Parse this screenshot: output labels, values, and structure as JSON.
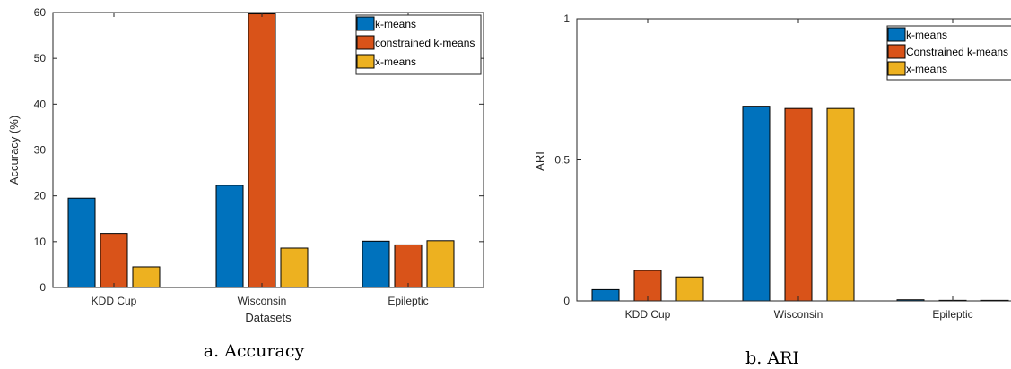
{
  "colors": {
    "k-means": "#0072BD",
    "constrained": "#D95319",
    "x-means": "#EDB120"
  },
  "chart_data": [
    {
      "type": "bar",
      "categories": [
        "KDD Cup",
        "Wisconsin",
        "Epileptic"
      ],
      "series": [
        {
          "name": "k-means",
          "values": [
            19.5,
            22.3,
            10.1
          ]
        },
        {
          "name": "constrained k-means",
          "values": [
            11.8,
            59.7,
            9.3
          ]
        },
        {
          "name": "x-means",
          "values": [
            4.5,
            8.6,
            10.2
          ]
        }
      ],
      "xlabel": "Datasets",
      "ylabel": "Accuracy (%)",
      "ylim": [
        0,
        60
      ],
      "yticks": [
        "0",
        "10",
        "20",
        "30",
        "40",
        "50",
        "60"
      ],
      "legend": "top-right",
      "grid": false,
      "caption": "a. Accuracy"
    },
    {
      "type": "bar",
      "categories": [
        "KDD Cup",
        "Wisconsin",
        "Epileptic"
      ],
      "series": [
        {
          "name": "k-means",
          "values": [
            0.04,
            0.69,
            0.004
          ]
        },
        {
          "name": "Constrained k-means",
          "values": [
            0.108,
            0.682,
            0.002
          ]
        },
        {
          "name": "x-means",
          "values": [
            0.085,
            0.682,
            0.002
          ]
        }
      ],
      "xlabel": "",
      "ylabel": "ARI",
      "ylim": [
        0,
        1
      ],
      "yticks": [
        "0",
        "0.5",
        "1"
      ],
      "legend": "top-right",
      "grid": false,
      "caption": "b. ARI"
    }
  ]
}
